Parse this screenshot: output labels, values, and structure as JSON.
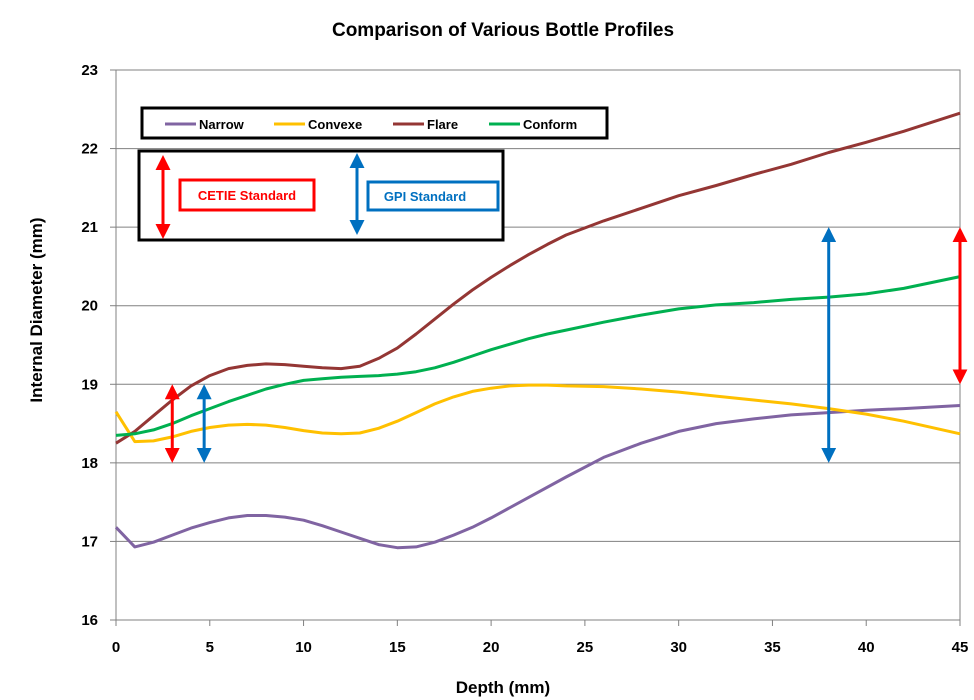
{
  "chart_data": {
    "type": "line",
    "title": "Comparison of Various Bottle Profiles",
    "xlabel": "Depth (mm)",
    "ylabel": "Internal Diameter (mm)",
    "xlim": [
      0,
      45
    ],
    "ylim": [
      16,
      23
    ],
    "xticks": [
      0,
      5,
      10,
      15,
      20,
      25,
      30,
      35,
      40,
      45
    ],
    "yticks": [
      16,
      17,
      18,
      19,
      20,
      21,
      22,
      23
    ],
    "grid": "horizontal",
    "legend_position": "top-left",
    "series": [
      {
        "name": "Narrow",
        "color": "#8064A2",
        "x": [
          0,
          1,
          2,
          3,
          4,
          5,
          6,
          7,
          8,
          9,
          10,
          11,
          12,
          13,
          14,
          15,
          16,
          17,
          18,
          19,
          20,
          22,
          24,
          26,
          28,
          30,
          32,
          34,
          36,
          38,
          40,
          42,
          45
        ],
        "y": [
          17.18,
          16.93,
          16.99,
          17.08,
          17.17,
          17.24,
          17.3,
          17.33,
          17.33,
          17.31,
          17.27,
          17.2,
          17.12,
          17.04,
          16.96,
          16.92,
          16.93,
          16.99,
          17.08,
          17.18,
          17.3,
          17.56,
          17.82,
          18.07,
          18.25,
          18.4,
          18.5,
          18.56,
          18.61,
          18.64,
          18.67,
          18.69,
          18.73
        ]
      },
      {
        "name": "Convexe",
        "color": "#FFC000",
        "x": [
          0,
          1,
          2,
          3,
          4,
          5,
          6,
          7,
          8,
          9,
          10,
          11,
          12,
          13,
          14,
          15,
          16,
          17,
          18,
          19,
          20,
          21,
          22,
          23,
          24,
          26,
          28,
          30,
          32,
          34,
          36,
          38,
          40,
          42,
          45
        ],
        "y": [
          18.65,
          18.27,
          18.28,
          18.33,
          18.4,
          18.45,
          18.48,
          18.49,
          18.48,
          18.45,
          18.41,
          18.38,
          18.37,
          18.38,
          18.44,
          18.53,
          18.64,
          18.75,
          18.84,
          18.91,
          18.95,
          18.98,
          18.99,
          18.99,
          18.98,
          18.97,
          18.94,
          18.9,
          18.85,
          18.8,
          18.75,
          18.69,
          18.62,
          18.53,
          18.37
        ]
      },
      {
        "name": "Flare",
        "color": "#943634",
        "x": [
          0,
          1,
          2,
          3,
          4,
          5,
          6,
          7,
          8,
          9,
          10,
          11,
          12,
          13,
          14,
          15,
          16,
          17,
          18,
          19,
          20,
          21,
          22,
          23,
          24,
          26,
          28,
          30,
          32,
          34,
          36,
          38,
          40,
          42,
          45
        ],
        "y": [
          18.25,
          18.4,
          18.6,
          18.8,
          18.98,
          19.11,
          19.2,
          19.24,
          19.26,
          19.25,
          19.23,
          19.21,
          19.2,
          19.23,
          19.33,
          19.46,
          19.64,
          19.83,
          20.02,
          20.2,
          20.36,
          20.51,
          20.65,
          20.78,
          20.9,
          21.08,
          21.24,
          21.4,
          21.53,
          21.67,
          21.8,
          21.95,
          22.08,
          22.22,
          22.45
        ]
      },
      {
        "name": "Conform",
        "color": "#00B050",
        "x": [
          0,
          1,
          2,
          3,
          4,
          5,
          6,
          7,
          8,
          9,
          10,
          11,
          12,
          13,
          14,
          15,
          16,
          17,
          18,
          19,
          20,
          21,
          22,
          23,
          24,
          26,
          28,
          30,
          32,
          34,
          36,
          38,
          40,
          42,
          45
        ],
        "y": [
          18.35,
          18.37,
          18.42,
          18.5,
          18.6,
          18.69,
          18.78,
          18.86,
          18.94,
          19.0,
          19.05,
          19.07,
          19.09,
          19.1,
          19.11,
          19.13,
          19.16,
          19.21,
          19.28,
          19.36,
          19.44,
          19.51,
          19.58,
          19.64,
          19.69,
          19.79,
          19.88,
          19.96,
          20.01,
          20.04,
          20.08,
          20.11,
          20.15,
          20.22,
          20.37
        ]
      }
    ],
    "annotations": {
      "cetie_label": "CETIE Standard",
      "gpi_label": "GPI Standard",
      "cetie_color": "#FF0000",
      "gpi_color": "#0070C0",
      "cetie_arrows": [
        {
          "x": 3,
          "y_low": 18.0,
          "y_high": 19.0
        },
        {
          "x": 45,
          "y_low": 19.0,
          "y_high": 21.0
        }
      ],
      "gpi_arrows": [
        {
          "x": 4.7,
          "y_low": 18.0,
          "y_high": 19.0
        },
        {
          "x": 38,
          "y_low": 18.0,
          "y_high": 21.0
        }
      ]
    }
  }
}
